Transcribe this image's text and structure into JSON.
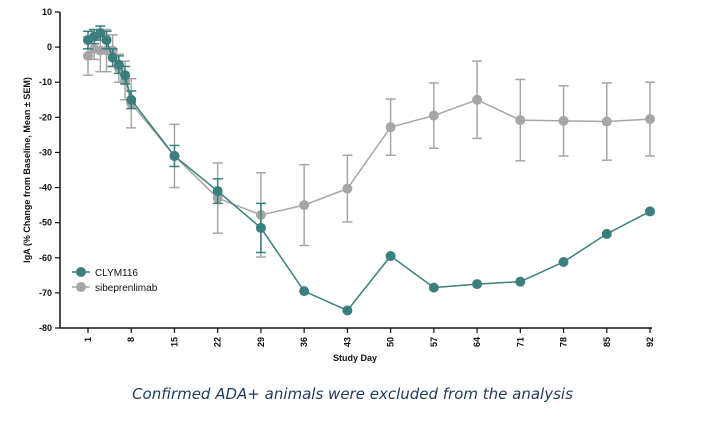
{
  "chart_data": {
    "type": "line",
    "ylabel": "IgA (% Change from Baseline,  Mean ± SEM)",
    "xlabel": "Study Day",
    "ylim": [
      -80,
      10
    ],
    "yticks": [
      10,
      0,
      -10,
      -20,
      -30,
      -40,
      -50,
      -60,
      -70,
      -80
    ],
    "xticks": [
      1,
      8,
      15,
      22,
      29,
      36,
      43,
      50,
      57,
      64,
      71,
      78,
      85,
      92
    ],
    "grid": false,
    "legend_position": "bottom-left",
    "series": [
      {
        "name": "CLYM116",
        "color": "#3a7f7d",
        "x": [
          1,
          2,
          3,
          4,
          5,
          6,
          7,
          8,
          15,
          22,
          29,
          36,
          43,
          50,
          57,
          64,
          71,
          78,
          85,
          92
        ],
        "y": [
          2,
          3,
          4,
          2,
          -3,
          -5,
          -8,
          -15,
          -31,
          -41,
          -51.5,
          -69.5,
          -75,
          -59.5,
          -68.5,
          -67.5,
          -66.8,
          -61.2,
          -53.2,
          -46.8
        ],
        "err": [
          2.5,
          2,
          2,
          2.5,
          2.5,
          2.5,
          2.5,
          2.5,
          3,
          3.5,
          7,
          null,
          null,
          null,
          null,
          null,
          null,
          null,
          null,
          null
        ]
      },
      {
        "name": "sibeprenlimab",
        "color": "#a6a6a6",
        "x": [
          1,
          2,
          3,
          4,
          5,
          6,
          7,
          8,
          15,
          22,
          29,
          36,
          43,
          50,
          57,
          64,
          71,
          78,
          85,
          92
        ],
        "y": [
          -2.5,
          -0.5,
          -1,
          -1,
          -1,
          -6,
          -9.5,
          -16,
          -31,
          -43,
          -47.8,
          -45,
          -40.3,
          -22.8,
          -19.5,
          -15,
          -20.8,
          -21,
          -21.2,
          -20.5
        ],
        "err": [
          5.5,
          3,
          6,
          6,
          4.5,
          4,
          5.5,
          7,
          9,
          10,
          12,
          11.5,
          9.5,
          8,
          9.3,
          11,
          11.6,
          10,
          11,
          10.5
        ]
      }
    ],
    "caption": "Confirmed ADA+ animals were excluded from the analysis"
  }
}
